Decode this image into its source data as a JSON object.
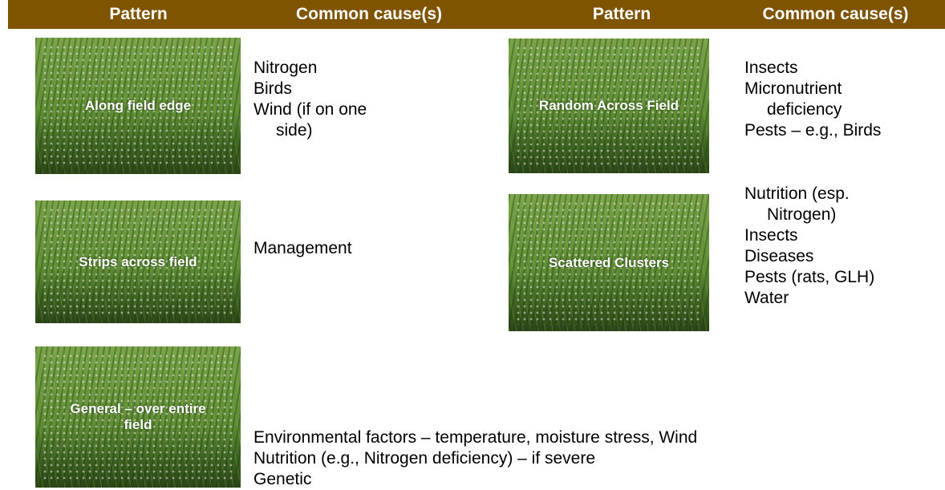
{
  "header": {
    "columns": [
      "Pattern",
      "Common cause(s)",
      "Pattern",
      "Common cause(s)"
    ]
  },
  "rows": [
    {
      "pattern": "Along field edge",
      "causes": [
        "Nitrogen",
        "Birds",
        "Wind (if on one side)"
      ]
    },
    {
      "pattern": "Random Across Field",
      "causes": [
        "Insects",
        "Micronutrient deficiency",
        "Pests – e.g., Birds"
      ]
    },
    {
      "pattern": "Strips across field",
      "causes": [
        "Management"
      ]
    },
    {
      "pattern": "Scattered Clusters",
      "causes": [
        "Nutrition (esp. Nitrogen)",
        "Insects",
        "Diseases",
        "Pests (rats, GLH)",
        "Water"
      ]
    },
    {
      "pattern": "General – over entire field",
      "causes": [
        "Environmental factors – temperature, moisture stress, Wind",
        "Nutrition (e.g., Nitrogen deficiency) – if severe",
        "Genetic"
      ]
    }
  ]
}
